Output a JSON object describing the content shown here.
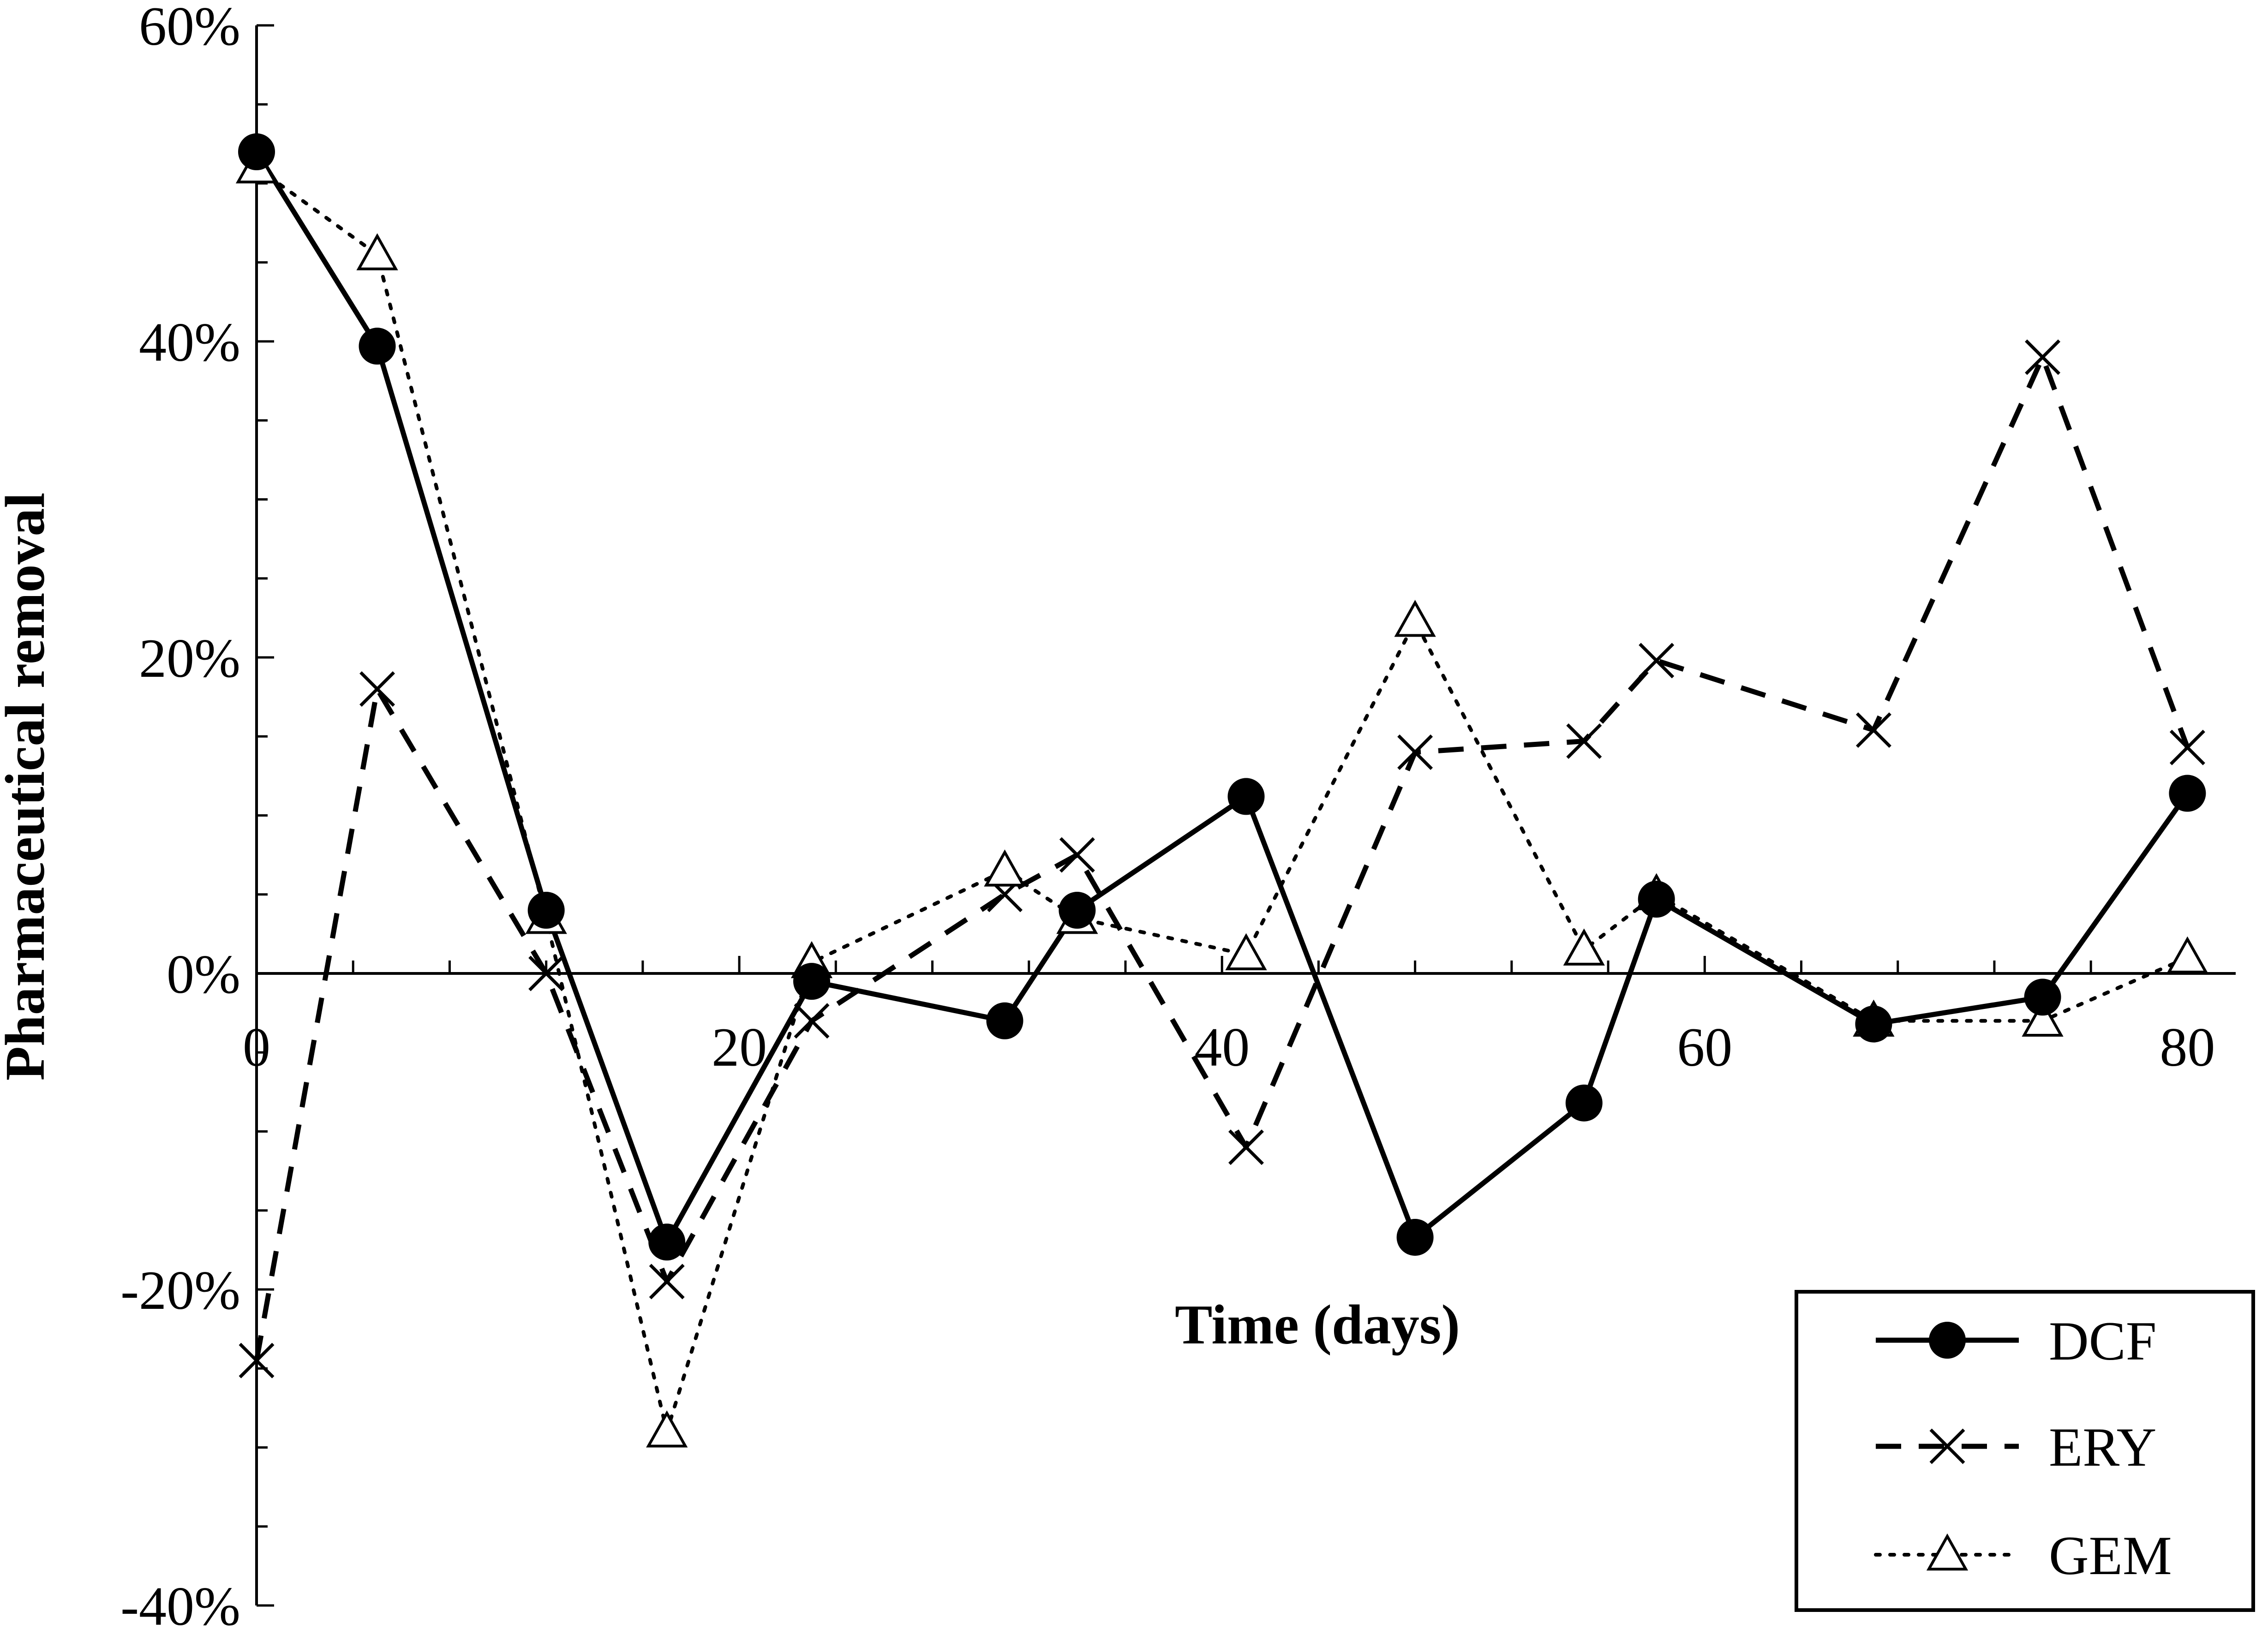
{
  "chart_data": {
    "type": "line",
    "xlabel": "Time (days)",
    "ylabel": "Pharmaceutical removal",
    "xlim": [
      0,
      82
    ],
    "ylim": [
      -0.4,
      0.6
    ],
    "x_ticks": [
      0,
      20,
      40,
      60,
      80
    ],
    "y_ticks": [
      -0.4,
      -0.2,
      0,
      0.2,
      0.4,
      0.6
    ],
    "y_tick_labels": [
      "-40%",
      "-20%",
      "0%",
      "20%",
      "40%",
      "60%"
    ],
    "x_tick_labels": [
      "0",
      "20",
      "40",
      "60",
      "80"
    ],
    "grid": false,
    "legend_position": "bottom-right",
    "series": [
      {
        "name": "DCF",
        "line_style": "solid",
        "marker": "filled-circle",
        "x": [
          0,
          5,
          12,
          17,
          23,
          31,
          34,
          41,
          48,
          55,
          58,
          67,
          74,
          80
        ],
        "y": [
          0.52,
          0.397,
          0.04,
          -0.17,
          -0.005,
          -0.03,
          0.04,
          0.112,
          -0.167,
          -0.082,
          0.047,
          -0.032,
          -0.015,
          0.114
        ]
      },
      {
        "name": "ERY",
        "line_style": "dashed",
        "marker": "x",
        "x": [
          0,
          5,
          12,
          17,
          23,
          31,
          34,
          41,
          48,
          55,
          58,
          67,
          74,
          80
        ],
        "y": [
          -0.245,
          0.18,
          0.0,
          -0.195,
          -0.03,
          0.05,
          0.075,
          -0.11,
          0.14,
          0.147,
          0.198,
          0.154,
          0.39,
          0.143
        ]
      },
      {
        "name": "GEM",
        "line_style": "dotted",
        "marker": "open-triangle",
        "x": [
          0,
          5,
          12,
          17,
          23,
          31,
          34,
          41,
          48,
          55,
          58,
          67,
          74,
          80
        ],
        "y": [
          0.51,
          0.455,
          0.035,
          -0.29,
          0.007,
          0.065,
          0.035,
          0.012,
          0.223,
          0.015,
          0.05,
          -0.03,
          -0.03,
          0.01
        ]
      }
    ]
  }
}
